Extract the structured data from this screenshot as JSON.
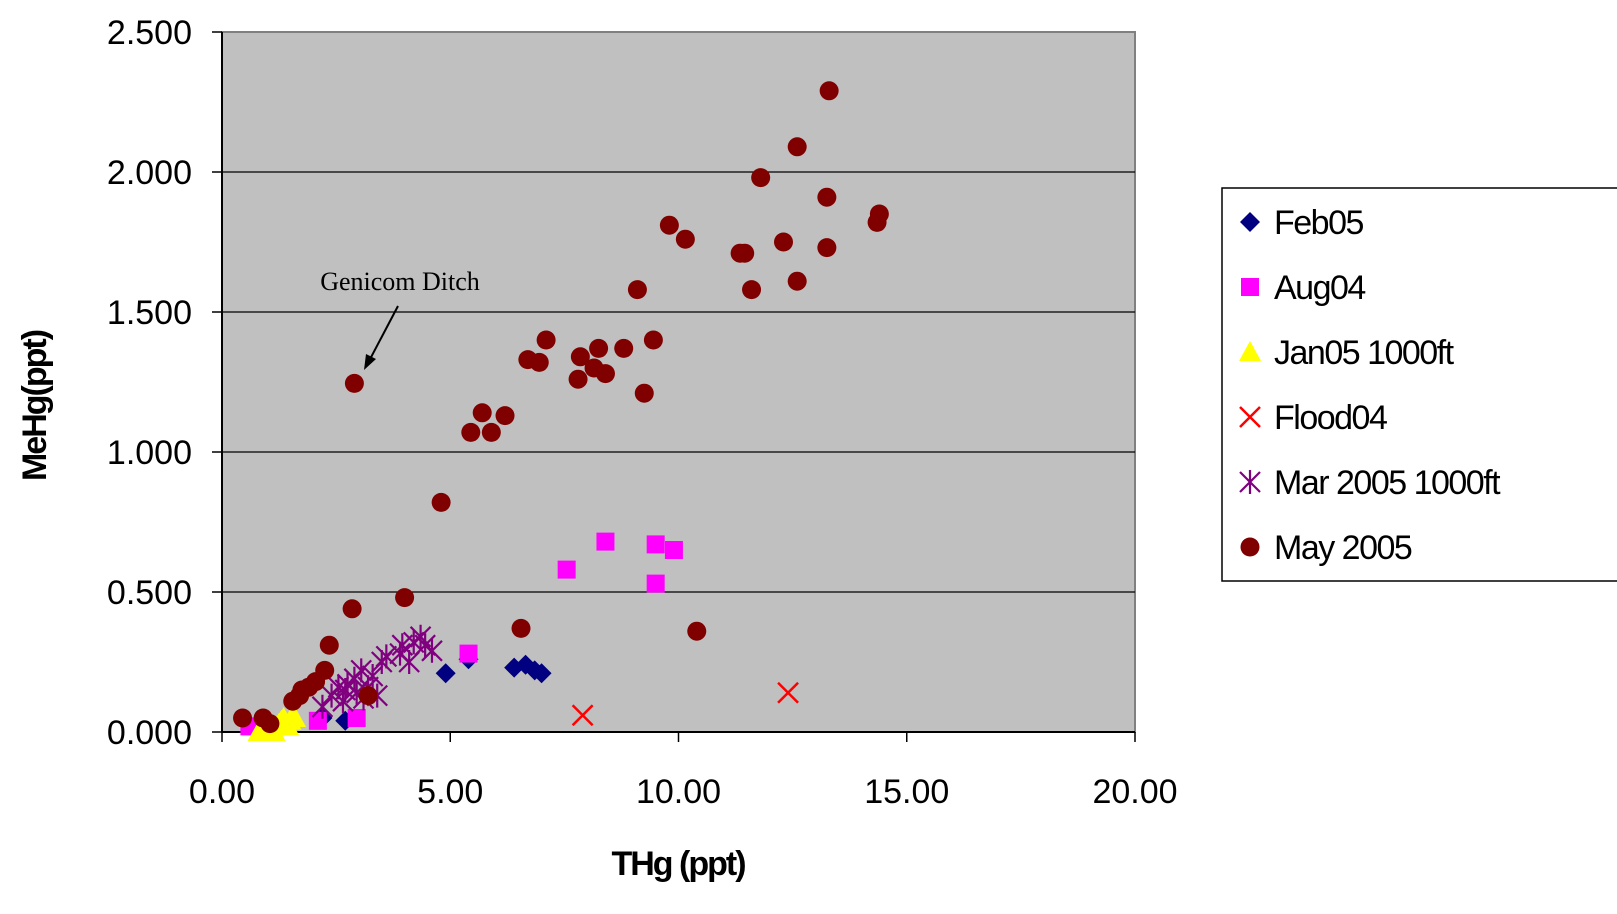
{
  "chart_data": {
    "type": "scatter",
    "xlabel": "THg (ppt)",
    "ylabel": "MeHg(ppt)",
    "xlim": [
      0,
      20
    ],
    "ylim": [
      0,
      2.5
    ],
    "x_ticks": [
      "0.00",
      "5.00",
      "10.00",
      "15.00",
      "20.00"
    ],
    "y_ticks": [
      "0.000",
      "0.500",
      "1.000",
      "1.500",
      "2.000",
      "2.500"
    ],
    "grid": "horizontal",
    "plot_background": "#c0c0c0",
    "legend_position": "right",
    "annotation": {
      "text": "Genicom Ditch",
      "x": 2.9,
      "y": 1.245
    },
    "series": [
      {
        "name": "Feb05",
        "marker": "diamond",
        "color": "#000080",
        "points": [
          [
            4.9,
            0.21
          ],
          [
            5.4,
            0.26
          ],
          [
            6.4,
            0.23
          ],
          [
            6.65,
            0.24
          ],
          [
            6.85,
            0.22
          ],
          [
            7.0,
            0.21
          ],
          [
            2.7,
            0.04
          ],
          [
            2.2,
            0.05
          ]
        ]
      },
      {
        "name": "Aug04",
        "marker": "square",
        "color": "#ff00ff",
        "points": [
          [
            0.6,
            0.02
          ],
          [
            2.1,
            0.04
          ],
          [
            2.95,
            0.05
          ],
          [
            5.4,
            0.28
          ],
          [
            7.55,
            0.58
          ],
          [
            8.4,
            0.68
          ],
          [
            9.5,
            0.67
          ],
          [
            9.9,
            0.65
          ],
          [
            9.5,
            0.53
          ]
        ]
      },
      {
        "name": "Jan05 1000ft",
        "marker": "triangle",
        "color": "#ffff00",
        "points": [
          [
            0.8,
            0.0
          ],
          [
            0.9,
            0.01
          ],
          [
            1.0,
            0.02
          ],
          [
            1.1,
            0.01
          ],
          [
            1.2,
            0.02
          ],
          [
            1.25,
            0.03
          ],
          [
            1.3,
            0.04
          ],
          [
            1.35,
            0.05
          ],
          [
            1.4,
            0.03
          ],
          [
            1.45,
            0.02
          ],
          [
            1.5,
            0.04
          ],
          [
            1.55,
            0.06
          ],
          [
            1.6,
            0.05
          ],
          [
            1.15,
            0.0
          ],
          [
            1.05,
            0.03
          ]
        ]
      },
      {
        "name": "Flood04",
        "marker": "x",
        "color": "#ff0000",
        "points": [
          [
            7.9,
            0.06
          ],
          [
            12.4,
            0.14
          ]
        ]
      },
      {
        "name": "Mar 2005 1000ft",
        "marker": "asterisk",
        "color": "#800080",
        "points": [
          [
            2.2,
            0.09
          ],
          [
            2.4,
            0.13
          ],
          [
            2.55,
            0.16
          ],
          [
            2.7,
            0.15
          ],
          [
            2.75,
            0.17
          ],
          [
            2.9,
            0.19
          ],
          [
            2.95,
            0.14
          ],
          [
            3.05,
            0.22
          ],
          [
            3.2,
            0.16
          ],
          [
            3.3,
            0.2
          ],
          [
            3.4,
            0.13
          ],
          [
            3.5,
            0.25
          ],
          [
            3.6,
            0.27
          ],
          [
            3.9,
            0.28
          ],
          [
            3.95,
            0.31
          ],
          [
            4.1,
            0.25
          ],
          [
            4.2,
            0.32
          ],
          [
            4.35,
            0.34
          ],
          [
            4.45,
            0.31
          ],
          [
            4.6,
            0.29
          ],
          [
            2.65,
            0.11
          ],
          [
            3.1,
            0.12
          ]
        ]
      },
      {
        "name": "May 2005",
        "marker": "circle",
        "color": "#800000",
        "points": [
          [
            0.45,
            0.05
          ],
          [
            0.9,
            0.05
          ],
          [
            1.05,
            0.03
          ],
          [
            1.55,
            0.11
          ],
          [
            1.7,
            0.13
          ],
          [
            1.75,
            0.15
          ],
          [
            1.9,
            0.16
          ],
          [
            2.05,
            0.18
          ],
          [
            2.25,
            0.22
          ],
          [
            2.35,
            0.31
          ],
          [
            2.85,
            0.44
          ],
          [
            3.2,
            0.13
          ],
          [
            4.0,
            0.48
          ],
          [
            4.8,
            0.82
          ],
          [
            5.45,
            1.07
          ],
          [
            5.7,
            1.14
          ],
          [
            5.9,
            1.07
          ],
          [
            6.2,
            1.13
          ],
          [
            6.55,
            0.37
          ],
          [
            6.7,
            1.33
          ],
          [
            6.95,
            1.32
          ],
          [
            7.1,
            1.4
          ],
          [
            7.8,
            1.26
          ],
          [
            7.85,
            1.34
          ],
          [
            8.15,
            1.3
          ],
          [
            8.25,
            1.37
          ],
          [
            8.4,
            1.28
          ],
          [
            8.8,
            1.37
          ],
          [
            9.1,
            1.58
          ],
          [
            9.25,
            1.21
          ],
          [
            9.45,
            1.4
          ],
          [
            9.8,
            1.81
          ],
          [
            10.15,
            1.76
          ],
          [
            10.4,
            0.36
          ],
          [
            11.35,
            1.71
          ],
          [
            11.45,
            1.71
          ],
          [
            11.6,
            1.58
          ],
          [
            11.8,
            1.98
          ],
          [
            12.3,
            1.75
          ],
          [
            12.6,
            2.09
          ],
          [
            12.6,
            1.61
          ],
          [
            13.25,
            1.91
          ],
          [
            13.25,
            1.73
          ],
          [
            13.3,
            2.29
          ],
          [
            14.35,
            1.82
          ],
          [
            14.4,
            1.85
          ],
          [
            2.9,
            1.245
          ]
        ]
      }
    ]
  }
}
